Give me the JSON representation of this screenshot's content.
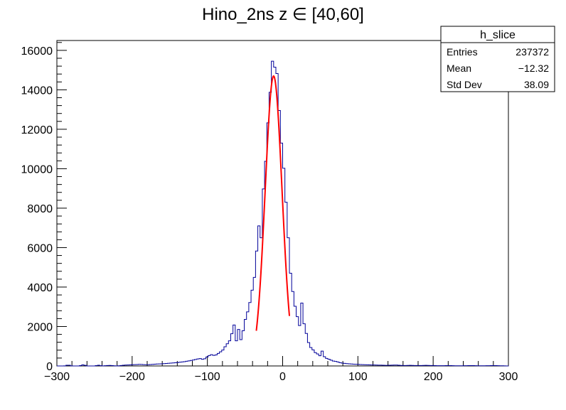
{
  "chart_data": {
    "type": "histogram",
    "title": "Hino_2ns z  ∈ [40,60]",
    "xlabel": "",
    "ylabel": "",
    "xlim": [
      -300,
      300
    ],
    "ylim": [
      0,
      16500
    ],
    "x_ticks": [
      -300,
      -200,
      -100,
      0,
      100,
      200,
      300
    ],
    "y_ticks": [
      0,
      2000,
      4000,
      6000,
      8000,
      10000,
      12000,
      14000,
      16000
    ],
    "bin_width": 3,
    "series": [
      {
        "color": "#000099",
        "points": [
          [
            -300,
            0
          ],
          [
            -290,
            0
          ],
          [
            -285,
            50
          ],
          [
            -280,
            0
          ],
          [
            -270,
            0
          ],
          [
            -265,
            60
          ],
          [
            -260,
            0
          ],
          [
            -250,
            0
          ],
          [
            -245,
            40
          ],
          [
            -240,
            0
          ],
          [
            -230,
            30
          ],
          [
            -220,
            0
          ],
          [
            -210,
            40
          ],
          [
            -200,
            60
          ],
          [
            -190,
            80
          ],
          [
            -180,
            60
          ],
          [
            -170,
            90
          ],
          [
            -160,
            110
          ],
          [
            -150,
            140
          ],
          [
            -140,
            170
          ],
          [
            -130,
            220
          ],
          [
            -120,
            290
          ],
          [
            -110,
            380
          ],
          [
            -105,
            320
          ],
          [
            -100,
            470
          ],
          [
            -95,
            580
          ],
          [
            -90,
            520
          ],
          [
            -85,
            650
          ],
          [
            -80,
            780
          ],
          [
            -76,
            1000
          ],
          [
            -73,
            1150
          ],
          [
            -70,
            1300
          ],
          [
            -67,
            1700
          ],
          [
            -64,
            2150
          ],
          [
            -61,
            1100
          ],
          [
            -58,
            2000
          ],
          [
            -55,
            1200
          ],
          [
            -52,
            1900
          ],
          [
            -49,
            2450
          ],
          [
            -46,
            2800
          ],
          [
            -43,
            3300
          ],
          [
            -40,
            3950
          ],
          [
            -37,
            4600
          ],
          [
            -35,
            5500
          ],
          [
            -33,
            6800
          ],
          [
            -31,
            7200
          ],
          [
            -29,
            6000
          ],
          [
            -27,
            8000
          ],
          [
            -25,
            9300
          ],
          [
            -23,
            10000
          ],
          [
            -21,
            11500
          ],
          [
            -19,
            12600
          ],
          [
            -17,
            13600
          ],
          [
            -15,
            14700
          ],
          [
            -14,
            15300
          ],
          [
            -13,
            15600
          ],
          [
            -12,
            15100
          ],
          [
            -11,
            15400
          ],
          [
            -10,
            14900
          ],
          [
            -9,
            15200
          ],
          [
            -7,
            14700
          ],
          [
            -6,
            14000
          ],
          [
            -5,
            13200
          ],
          [
            -3,
            12200
          ],
          [
            -1,
            11000
          ],
          [
            1,
            10300
          ],
          [
            3,
            9200
          ],
          [
            5,
            8000
          ],
          [
            7,
            6900
          ],
          [
            9,
            5300
          ],
          [
            11,
            4500
          ],
          [
            13,
            3900
          ],
          [
            15,
            3400
          ],
          [
            17,
            2900
          ],
          [
            19,
            2600
          ],
          [
            21,
            2200
          ],
          [
            23,
            2000
          ],
          [
            25,
            3300
          ],
          [
            27,
            2850
          ],
          [
            29,
            1900
          ],
          [
            32,
            1600
          ],
          [
            35,
            1100
          ],
          [
            38,
            900
          ],
          [
            41,
            800
          ],
          [
            44,
            650
          ],
          [
            47,
            600
          ],
          [
            50,
            500
          ],
          [
            53,
            800
          ],
          [
            56,
            400
          ],
          [
            60,
            370
          ],
          [
            64,
            300
          ],
          [
            68,
            240
          ],
          [
            72,
            220
          ],
          [
            76,
            170
          ],
          [
            80,
            140
          ],
          [
            85,
            120
          ],
          [
            90,
            100
          ],
          [
            95,
            90
          ],
          [
            100,
            80
          ],
          [
            110,
            60
          ],
          [
            120,
            50
          ],
          [
            130,
            40
          ],
          [
            140,
            30
          ],
          [
            150,
            50
          ],
          [
            160,
            20
          ],
          [
            170,
            30
          ],
          [
            180,
            20
          ],
          [
            190,
            30
          ],
          [
            200,
            20
          ],
          [
            210,
            10
          ],
          [
            220,
            20
          ],
          [
            230,
            10
          ],
          [
            240,
            10
          ],
          [
            250,
            20
          ],
          [
            260,
            10
          ],
          [
            270,
            10
          ],
          [
            280,
            20
          ],
          [
            290,
            10
          ],
          [
            300,
            0
          ]
        ]
      },
      {
        "type": "line",
        "color": "#ff0000",
        "fit": {
          "amplitude": 14700,
          "mean": -12,
          "sigma": 11.2,
          "range": [
            -35,
            9
          ]
        }
      }
    ]
  },
  "stats_box": {
    "title": "h_slice",
    "rows": [
      {
        "label": "Entries",
        "value": "237372"
      },
      {
        "label": "Mean",
        "value": "−12.32"
      },
      {
        "label": "Std Dev",
        "value": "38.09"
      }
    ]
  }
}
